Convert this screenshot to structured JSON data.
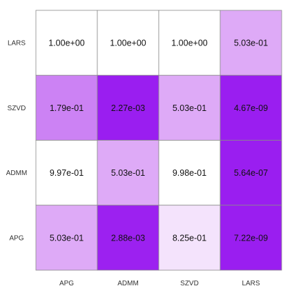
{
  "chart_data": {
    "type": "heatmap",
    "x_categories": [
      "APG",
      "ADMM",
      "SZVD",
      "LARS"
    ],
    "y_categories": [
      "LARS",
      "SZVD",
      "ADMM",
      "APG"
    ],
    "cells": [
      {
        "row": "LARS",
        "col": "APG",
        "value": 1.0,
        "label": "1.00e+00"
      },
      {
        "row": "LARS",
        "col": "ADMM",
        "value": 1.0,
        "label": "1.00e+00"
      },
      {
        "row": "LARS",
        "col": "SZVD",
        "value": 1.0,
        "label": "1.00e+00"
      },
      {
        "row": "LARS",
        "col": "LARS",
        "value": 0.503,
        "label": "5.03e-01"
      },
      {
        "row": "SZVD",
        "col": "APG",
        "value": 0.179,
        "label": "1.79e-01"
      },
      {
        "row": "SZVD",
        "col": "ADMM",
        "value": 0.00227,
        "label": "2.27e-03"
      },
      {
        "row": "SZVD",
        "col": "SZVD",
        "value": 0.503,
        "label": "5.03e-01"
      },
      {
        "row": "SZVD",
        "col": "LARS",
        "value": 4.67e-09,
        "label": "4.67e-09"
      },
      {
        "row": "ADMM",
        "col": "APG",
        "value": 0.997,
        "label": "9.97e-01"
      },
      {
        "row": "ADMM",
        "col": "ADMM",
        "value": 0.503,
        "label": "5.03e-01"
      },
      {
        "row": "ADMM",
        "col": "SZVD",
        "value": 0.998,
        "label": "9.98e-01"
      },
      {
        "row": "ADMM",
        "col": "LARS",
        "value": 5.64e-07,
        "label": "5.64e-07"
      },
      {
        "row": "APG",
        "col": "APG",
        "value": 0.503,
        "label": "5.03e-01"
      },
      {
        "row": "APG",
        "col": "ADMM",
        "value": 0.00288,
        "label": "2.88e-03"
      },
      {
        "row": "APG",
        "col": "SZVD",
        "value": 0.825,
        "label": "8.25e-01"
      },
      {
        "row": "APG",
        "col": "LARS",
        "value": 7.22e-09,
        "label": "7.22e-09"
      }
    ],
    "color_scale": {
      "low": "#9a1ef0",
      "mid": "#d89af5",
      "high": "#ffffff"
    },
    "grid": true,
    "legend": "none"
  }
}
